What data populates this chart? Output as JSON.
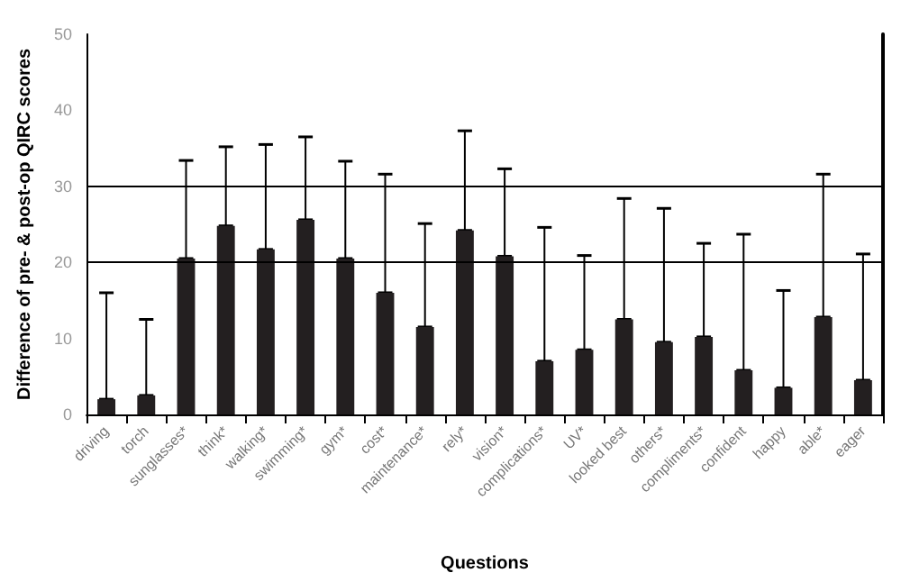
{
  "chart_data": {
    "type": "bar",
    "xlabel": "Questions",
    "ylabel": "Difference of pre- & post-op QIRC scores",
    "categories": [
      "driving",
      "torch",
      "sunglasses*",
      "think*",
      "walking*",
      "swimming*",
      "gym*",
      "cost*",
      "maintenance*",
      "rely*",
      "vision*",
      "complications*",
      "UV*",
      "looked best",
      "others*",
      "compliments*",
      "confident",
      "happy",
      "able*",
      "eager"
    ],
    "values": [
      2,
      2.5,
      20.5,
      24.8,
      21.7,
      25.6,
      20.5,
      16,
      11.5,
      24.2,
      20.8,
      7,
      8.5,
      12.5,
      9.5,
      10.2,
      5.8,
      3.5,
      12.8,
      4.5
    ],
    "errors": [
      [
        2,
        16
      ],
      [
        2.5,
        12.5
      ],
      [
        20.5,
        33.4
      ],
      [
        24.8,
        35.2
      ],
      [
        21.7,
        35.5
      ],
      [
        25.6,
        36.5
      ],
      [
        20.5,
        33.3
      ],
      [
        16,
        31.6
      ],
      [
        11.5,
        25.1
      ],
      [
        24.2,
        37.3
      ],
      [
        20.8,
        32.3
      ],
      [
        7,
        24.6
      ],
      [
        8.5,
        20.9
      ],
      [
        12.5,
        28.4
      ],
      [
        9.5,
        27.1
      ],
      [
        10.2,
        22.5
      ],
      [
        5.8,
        23.7
      ],
      [
        3.5,
        16.3
      ],
      [
        12.8,
        31.6
      ],
      [
        4.5,
        21.1
      ]
    ],
    "color": "#231f20",
    "ylim": [
      0,
      50
    ],
    "yticks": [
      0,
      10,
      20,
      30,
      40,
      50
    ],
    "grid": false,
    "ref_lines": [
      {
        "axis": "y",
        "value": 20,
        "color": "#000000"
      },
      {
        "axis": "y",
        "value": 30,
        "color": "#000000"
      }
    ]
  }
}
